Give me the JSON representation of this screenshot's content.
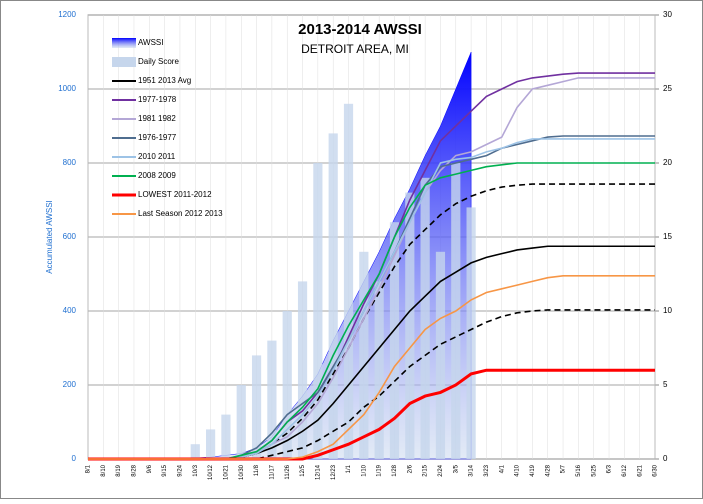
{
  "chart_data": {
    "type": "line",
    "title": "2013-2014 AWSSI",
    "subtitle": "DETROIT AREA, MI",
    "y_label": "Accumulated AWSSI",
    "categories": [
      "8/1",
      "8/10",
      "8/19",
      "8/28",
      "9/6",
      "9/15",
      "9/24",
      "10/3",
      "10/12",
      "10/21",
      "10/30",
      "11/8",
      "11/17",
      "11/26",
      "12/5",
      "12/14",
      "12/23",
      "1/1",
      "1/10",
      "1/19",
      "1/28",
      "2/6",
      "2/15",
      "2/24",
      "3/5",
      "3/14",
      "3/23",
      "4/1",
      "4/10",
      "4/19",
      "4/28",
      "5/7",
      "5/16",
      "5/25",
      "6/3",
      "6/12",
      "6/21",
      "6/30"
    ],
    "ylim": [
      0,
      1200
    ],
    "yticks": [
      0,
      200,
      400,
      600,
      800,
      1000,
      1200
    ],
    "y2lim": [
      0,
      30
    ],
    "y2ticks": [
      0,
      5,
      10,
      15,
      20,
      25,
      30
    ],
    "grid": true,
    "legend": "upper left",
    "series": [
      {
        "name": "AWSSI",
        "mark": "area",
        "color": "#0000ff",
        "values": [
          0,
          0,
          0,
          0,
          0,
          0,
          0,
          3,
          5,
          10,
          15,
          30,
          60,
          120,
          170,
          230,
          320,
          400,
          480,
          560,
          650,
          730,
          820,
          900,
          1000,
          1100,
          null,
          null,
          null,
          null,
          null,
          null,
          null,
          null,
          null,
          null,
          null,
          null
        ]
      },
      {
        "name": "Daily Score",
        "mark": "bar",
        "axis": "y2",
        "color": "#c6d6ec",
        "values": [
          0,
          0,
          0,
          0,
          0,
          0,
          0,
          1,
          2,
          3,
          5,
          7,
          8,
          10,
          12,
          20,
          22,
          24,
          14,
          12,
          16,
          18,
          19,
          14,
          20,
          17,
          null,
          null,
          null,
          null,
          null,
          null,
          null,
          null,
          null,
          null,
          null,
          null
        ]
      },
      {
        "name": "1951 2013 Avg",
        "mark": "line",
        "color": "#000000",
        "values": [
          0,
          0,
          0,
          0,
          0,
          0,
          0,
          0,
          0,
          0,
          5,
          15,
          30,
          50,
          75,
          105,
          150,
          200,
          250,
          300,
          350,
          400,
          440,
          480,
          505,
          530,
          545,
          555,
          565,
          570,
          575,
          575,
          575,
          575,
          575,
          575,
          575,
          575
        ]
      },
      {
        "mark": "line",
        "dash": true,
        "color": "#000000",
        "values": [
          0,
          0,
          0,
          0,
          0,
          0,
          0,
          0,
          0,
          0,
          5,
          15,
          40,
          70,
          110,
          160,
          230,
          300,
          380,
          450,
          520,
          580,
          620,
          660,
          690,
          710,
          725,
          735,
          740,
          743,
          743,
          743,
          743,
          743,
          743,
          743,
          743,
          743
        ]
      },
      {
        "mark": "line",
        "dash": true,
        "color": "#000000",
        "values": [
          0,
          0,
          0,
          0,
          0,
          0,
          0,
          0,
          0,
          0,
          0,
          0,
          10,
          20,
          30,
          50,
          75,
          100,
          140,
          170,
          210,
          250,
          280,
          310,
          330,
          350,
          370,
          385,
          395,
          400,
          403,
          403,
          403,
          403,
          403,
          403,
          403,
          403
        ]
      },
      {
        "name": "1977-1978",
        "mark": "line",
        "color": "#7030a0",
        "values": [
          0,
          0,
          0,
          0,
          0,
          0,
          0,
          0,
          0,
          0,
          5,
          20,
          50,
          100,
          130,
          180,
          240,
          330,
          420,
          500,
          600,
          700,
          780,
          860,
          900,
          940,
          980,
          1000,
          1020,
          1030,
          1035,
          1040,
          1043,
          1043,
          1043,
          1043,
          1043,
          1043
        ]
      },
      {
        "name": "1981 1982",
        "mark": "line",
        "color": "#b4a7d6",
        "values": [
          0,
          0,
          0,
          0,
          0,
          0,
          0,
          0,
          0,
          0,
          5,
          20,
          40,
          60,
          100,
          150,
          220,
          300,
          380,
          460,
          550,
          640,
          720,
          780,
          820,
          830,
          850,
          870,
          950,
          1000,
          1010,
          1020,
          1030,
          1030,
          1030,
          1030,
          1030,
          1030
        ]
      },
      {
        "name": "1976-1977",
        "mark": "line",
        "color": "#4f6d8f",
        "values": [
          0,
          0,
          0,
          0,
          0,
          0,
          0,
          0,
          0,
          0,
          10,
          30,
          70,
          120,
          150,
          180,
          250,
          320,
          400,
          480,
          560,
          650,
          740,
          790,
          800,
          810,
          820,
          840,
          850,
          860,
          870,
          873,
          873,
          873,
          873,
          873,
          873,
          873
        ]
      },
      {
        "name": "2010 2011",
        "mark": "line",
        "color": "#9dc3e6",
        "values": [
          0,
          0,
          0,
          0,
          0,
          0,
          0,
          0,
          0,
          0,
          5,
          15,
          40,
          80,
          120,
          170,
          240,
          320,
          400,
          480,
          560,
          640,
          720,
          800,
          810,
          815,
          830,
          840,
          855,
          865,
          865,
          865,
          865,
          865,
          865,
          865,
          865,
          865
        ]
      },
      {
        "name": "2008 2009",
        "mark": "line",
        "color": "#00b050",
        "values": [
          0,
          0,
          0,
          0,
          0,
          0,
          0,
          0,
          0,
          0,
          10,
          20,
          50,
          100,
          140,
          190,
          280,
          360,
          430,
          500,
          600,
          680,
          740,
          760,
          770,
          780,
          790,
          795,
          800,
          800,
          800,
          800,
          800,
          800,
          800,
          800,
          800,
          800
        ]
      },
      {
        "name": "LOWEST 2011-2012",
        "mark": "line",
        "color": "#ff0000",
        "width": 3,
        "values": [
          0,
          0,
          0,
          0,
          0,
          0,
          0,
          0,
          0,
          0,
          0,
          0,
          0,
          0,
          0,
          10,
          25,
          40,
          60,
          80,
          110,
          150,
          170,
          180,
          200,
          230,
          240,
          240,
          240,
          240,
          240,
          240,
          240,
          240,
          240,
          240,
          240,
          240
        ]
      },
      {
        "name": "Last Season 2012 2013",
        "mark": "line",
        "color": "#f79646",
        "values": [
          0,
          0,
          0,
          0,
          0,
          0,
          0,
          0,
          0,
          0,
          0,
          0,
          0,
          0,
          5,
          20,
          40,
          80,
          120,
          180,
          250,
          300,
          350,
          380,
          400,
          430,
          450,
          460,
          470,
          480,
          490,
          495,
          495,
          495,
          495,
          495,
          495,
          495
        ]
      }
    ]
  }
}
